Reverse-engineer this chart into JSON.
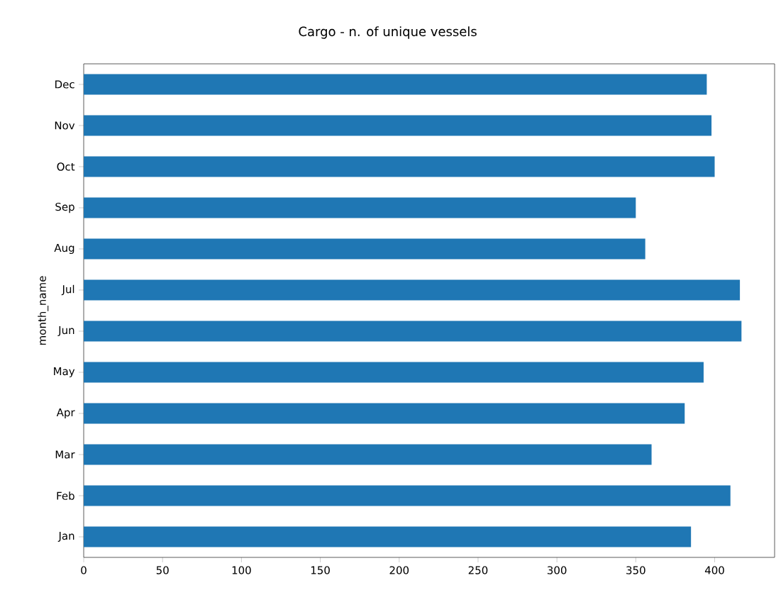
{
  "chart_data": {
    "type": "bar",
    "orientation": "horizontal",
    "title": "Cargo - n. of unique vessels",
    "ylabel": "month_name",
    "categories": [
      "Dec",
      "Nov",
      "Oct",
      "Sep",
      "Aug",
      "Jul",
      "Jun",
      "May",
      "Apr",
      "Mar",
      "Feb",
      "Jan"
    ],
    "values": [
      395,
      398,
      400,
      350,
      356,
      416,
      417,
      393,
      381,
      360,
      410,
      385
    ],
    "color": "#1f77b4",
    "xlim": [
      0,
      438
    ],
    "xticks": [
      0,
      50,
      100,
      150,
      200,
      250,
      300,
      350,
      400
    ],
    "grid": false
  }
}
